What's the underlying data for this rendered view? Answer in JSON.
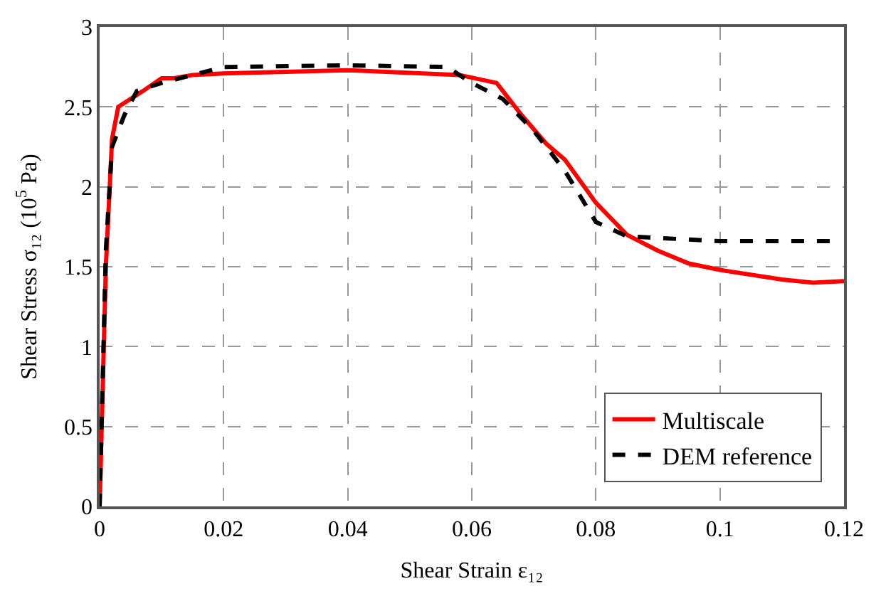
{
  "chart_data": {
    "type": "line",
    "xlabel": "Shear Strain ε₁₂",
    "ylabel": "Shear Stress σ₁₂ (10$^{5}$ Pa)",
    "xlim": [
      0,
      0.12
    ],
    "xticks": [
      0,
      0.02,
      0.04,
      0.06,
      0.08,
      0.1,
      0.12
    ],
    "ylim": [
      0,
      3
    ],
    "yticks": [
      0,
      0.5,
      1,
      1.5,
      2,
      2.5,
      3
    ],
    "grid": true,
    "legend": "bottom right",
    "marker": "none",
    "series": [
      {
        "name": "Multiscale",
        "color": "#ff0000",
        "line_style": "solid",
        "x": [
          0,
          0.001,
          0.002,
          0.003,
          0.005,
          0.007,
          0.01,
          0.012,
          0.015,
          0.02,
          0.04,
          0.058,
          0.064,
          0.068,
          0.072,
          0.075,
          0.08,
          0.085,
          0.09,
          0.095,
          0.1,
          0.11,
          0.115,
          0.12
        ],
        "values": [
          0,
          1.5,
          2.3,
          2.5,
          2.55,
          2.6,
          2.68,
          2.68,
          2.7,
          2.71,
          2.73,
          2.7,
          2.65,
          2.45,
          2.27,
          2.17,
          1.9,
          1.7,
          1.6,
          1.52,
          1.48,
          1.42,
          1.4,
          1.41
        ]
      },
      {
        "name": "DEM reference",
        "color": "#000000",
        "line_style": "dashed",
        "x": [
          0,
          0.001,
          0.002,
          0.004,
          0.006,
          0.01,
          0.015,
          0.02,
          0.04,
          0.056,
          0.06,
          0.065,
          0.07,
          0.075,
          0.08,
          0.085,
          0.09,
          0.1,
          0.119
        ],
        "values": [
          0,
          1.6,
          2.25,
          2.45,
          2.6,
          2.65,
          2.7,
          2.75,
          2.76,
          2.75,
          2.65,
          2.55,
          2.35,
          2.1,
          1.78,
          1.69,
          1.68,
          1.66,
          1.66
        ]
      }
    ]
  }
}
